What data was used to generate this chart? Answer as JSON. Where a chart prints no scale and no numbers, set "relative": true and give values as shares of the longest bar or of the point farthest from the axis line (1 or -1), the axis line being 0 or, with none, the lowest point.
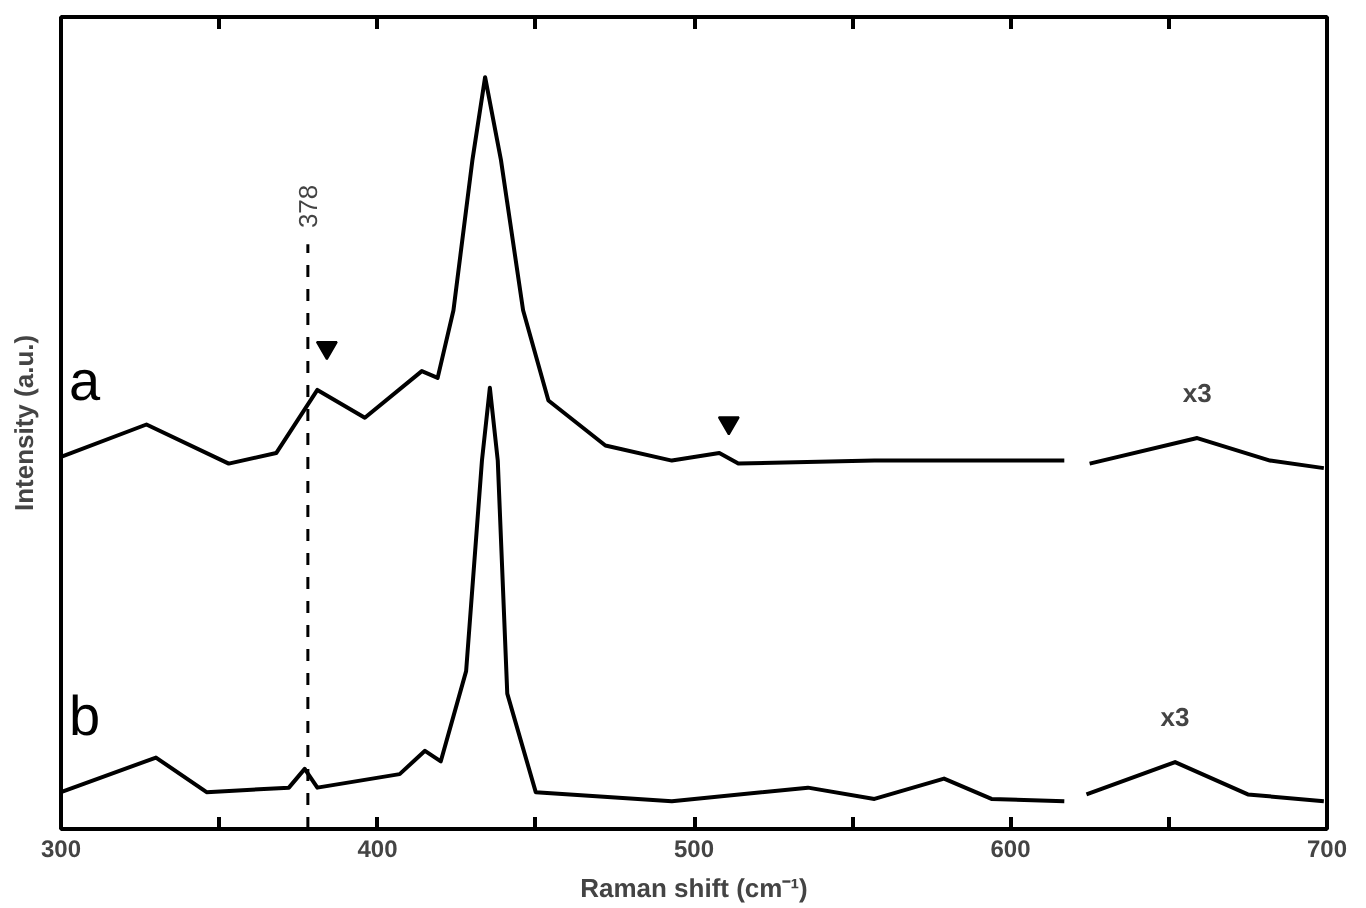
{
  "chart_data": {
    "type": "line",
    "relative": true,
    "xlabel": "Raman shift (cm⁻¹)",
    "ylabel": "Intensity (a.u.)",
    "xlim": [
      300,
      700
    ],
    "xticks": [
      300,
      {
        "value": 350,
        "label": null
      },
      400,
      {
        "value": 450,
        "label": null
      },
      500,
      {
        "value": 550,
        "label": null
      },
      600,
      {
        "value": 650,
        "label": null
      },
      700
    ],
    "grid": false,
    "marker": "none",
    "line_style": "solid",
    "series": [
      {
        "name": "a",
        "color": "#000000",
        "x": [
          300,
          327,
          353,
          368,
          381,
          396,
          414,
          419,
          424,
          430,
          434,
          439,
          446,
          454,
          472,
          493,
          508,
          514,
          557,
          617,
          620,
          625,
          659,
          682,
          699
        ],
        "values": [
          0.495,
          0.538,
          0.486,
          0.5,
          0.584,
          0.547,
          0.609,
          0.6,
          0.69,
          0.89,
          1.0,
          0.89,
          0.69,
          0.57,
          0.51,
          0.49,
          0.5,
          0.486,
          0.49,
          0.49,
          null,
          0.486,
          0.52,
          0.49,
          0.48
        ]
      },
      {
        "name": "b",
        "color": "#000000",
        "x": [
          300,
          330,
          346,
          372,
          377,
          381,
          407,
          415,
          420,
          428,
          433,
          435.5,
          438,
          441,
          450,
          493,
          536,
          557,
          579,
          594,
          617,
          620,
          624,
          652,
          675,
          699
        ],
        "values": [
          0.049,
          0.095,
          0.049,
          0.055,
          0.08,
          0.055,
          0.073,
          0.104,
          0.09,
          0.21,
          0.49,
          0.587,
          0.49,
          0.18,
          0.049,
          0.037,
          0.055,
          0.04,
          0.067,
          0.04,
          0.037,
          null,
          0.046,
          0.089,
          0.046,
          0.037
        ]
      },
      {
        "type": "scatter",
        "marker": "triangle",
        "color": "#000000",
        "x": [
          384,
          511
        ],
        "values": [
          0.64,
          0.54
        ]
      }
    ],
    "ref_lines": [
      {
        "axis": "x",
        "value": 378,
        "label": "378",
        "line_style": "dashed",
        "color": "#000000"
      }
    ],
    "annotations": [
      "x3",
      "x3"
    ]
  }
}
